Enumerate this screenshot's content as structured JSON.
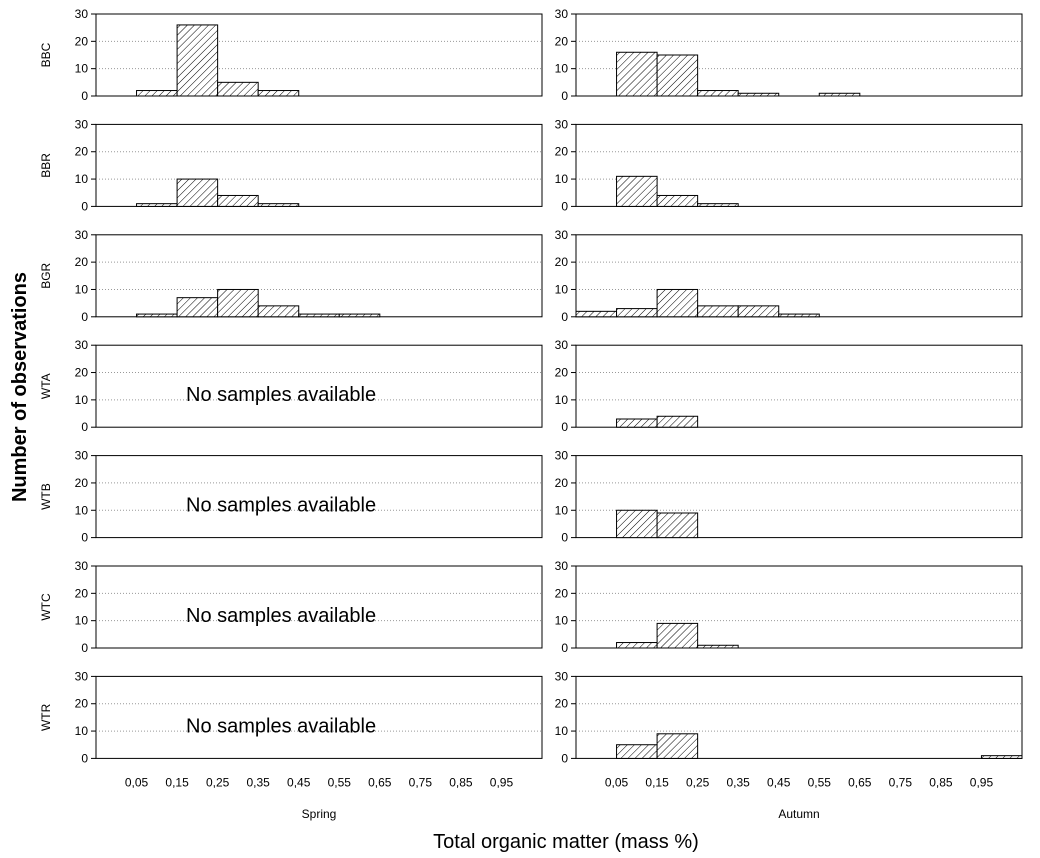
{
  "chart_data": {
    "type": "bar",
    "subtype": "histogram-grid",
    "xlabel": "Total organic matter (mass %)",
    "ylabel": "Number of observations",
    "bin_centers": [
      0.0,
      0.1,
      0.2,
      0.3,
      0.4,
      0.5,
      0.6,
      0.7,
      0.8,
      0.9,
      1.0
    ],
    "bin_width": 0.1,
    "x_tick_labels": [
      "0,05",
      "0,15",
      "0,25",
      "0,35",
      "0,45",
      "0,55",
      "0,65",
      "0,75",
      "0,85",
      "0,95"
    ],
    "xlim": [
      -0.05,
      1.05
    ],
    "ylim": [
      0,
      30
    ],
    "y_ticks": [
      0,
      10,
      20,
      30
    ],
    "grid": "horizontal dotted",
    "bar_fill": "diagonal hatch",
    "columns": [
      "Spring",
      "Autumn"
    ],
    "rows": [
      "BBC",
      "BBR",
      "BGR",
      "WTA",
      "WTB",
      "WTC",
      "WTR"
    ],
    "no_data_text": "No samples available",
    "panels": [
      {
        "row": "BBC",
        "column": "Spring",
        "values": [
          0,
          2,
          26,
          5,
          2,
          0,
          0,
          0,
          0,
          0,
          0
        ]
      },
      {
        "row": "BBC",
        "column": "Autumn",
        "values": [
          0,
          16,
          15,
          2,
          1,
          0,
          1,
          0,
          0,
          0,
          0
        ]
      },
      {
        "row": "BBR",
        "column": "Spring",
        "values": [
          0,
          1,
          10,
          4,
          1,
          0,
          0,
          0,
          0,
          0,
          0
        ]
      },
      {
        "row": "BBR",
        "column": "Autumn",
        "values": [
          0,
          11,
          4,
          1,
          0,
          0,
          0,
          0,
          0,
          0,
          0
        ]
      },
      {
        "row": "BGR",
        "column": "Spring",
        "values": [
          0,
          1,
          7,
          10,
          4,
          1,
          1,
          0,
          0,
          0,
          0
        ]
      },
      {
        "row": "BGR",
        "column": "Autumn",
        "values": [
          2,
          3,
          10,
          4,
          4,
          1,
          0,
          0,
          0,
          0,
          0
        ]
      },
      {
        "row": "WTA",
        "column": "Spring",
        "values": null
      },
      {
        "row": "WTA",
        "column": "Autumn",
        "values": [
          0,
          3,
          4,
          0,
          0,
          0,
          0,
          0,
          0,
          0,
          0
        ]
      },
      {
        "row": "WTB",
        "column": "Spring",
        "values": null
      },
      {
        "row": "WTB",
        "column": "Autumn",
        "values": [
          0,
          10,
          9,
          0,
          0,
          0,
          0,
          0,
          0,
          0,
          0
        ]
      },
      {
        "row": "WTC",
        "column": "Spring",
        "values": null
      },
      {
        "row": "WTC",
        "column": "Autumn",
        "values": [
          0,
          2,
          9,
          1,
          0,
          0,
          0,
          0,
          0,
          0,
          0
        ]
      },
      {
        "row": "WTR",
        "column": "Spring",
        "values": null
      },
      {
        "row": "WTR",
        "column": "Autumn",
        "values": [
          0,
          5,
          9,
          0,
          0,
          0,
          0,
          0,
          0,
          0,
          1
        ]
      }
    ]
  }
}
